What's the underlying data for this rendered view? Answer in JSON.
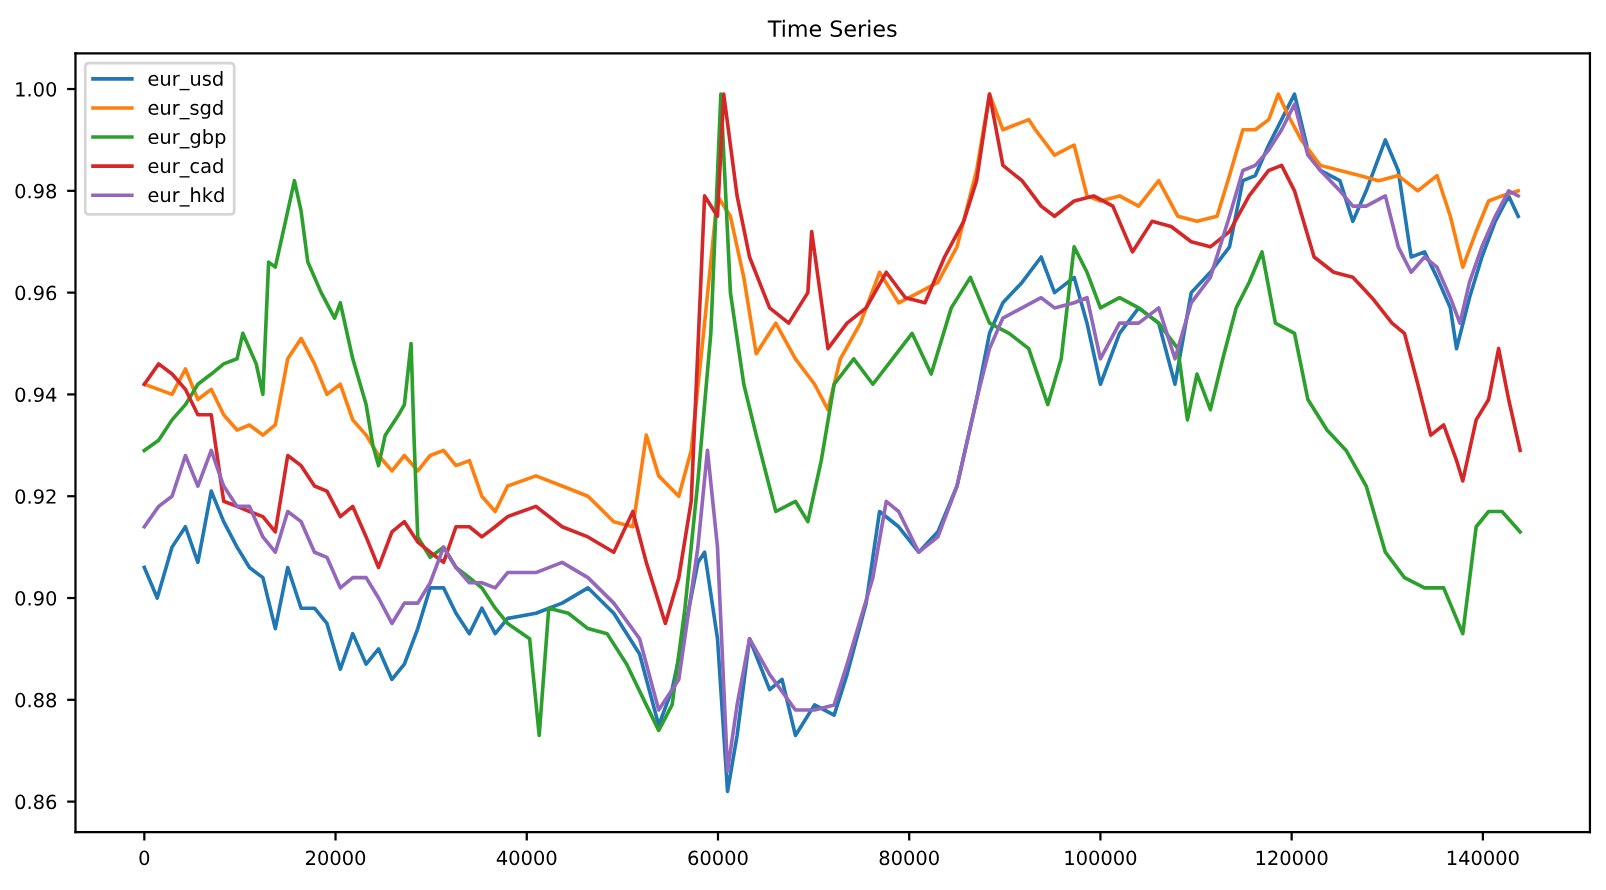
{
  "chart_data": {
    "type": "line",
    "title": "Time Series",
    "xlim": [
      -7200,
      151200
    ],
    "xticks": [
      0,
      20000,
      40000,
      60000,
      80000,
      100000,
      120000,
      140000
    ],
    "ylim": [
      0.854,
      1.007
    ],
    "yticks": [
      0.86,
      0.88,
      {
        "value": 0.9,
        "label": "0.90"
      },
      0.92,
      0.94,
      0.96,
      0.98,
      {
        "value": 1.0,
        "label": "1.00"
      }
    ],
    "grid": false,
    "legend": "top left",
    "series": [
      {
        "name": "eur_usd",
        "color": "#1f77b4",
        "x": [
          0,
          1350,
          2900,
          4300,
          5600,
          7000,
          8300,
          9700,
          11000,
          12400,
          13700,
          15000,
          16400,
          17800,
          19100,
          20500,
          21800,
          23200,
          24500,
          25900,
          27200,
          28600,
          29900,
          31300,
          32600,
          34000,
          35300,
          36700,
          38000,
          40960,
          43700,
          46400,
          49100,
          51800,
          53800,
          55200,
          56550,
          57900,
          58600,
          59950,
          61000,
          62000,
          63300,
          65400,
          66700,
          68100,
          70100,
          72150,
          73500,
          75500,
          76900,
          78900,
          81000,
          83000,
          85000,
          87050,
          88400,
          89800,
          91800,
          93800,
          95200,
          97250,
          98600,
          100000,
          102000,
          104000,
          106100,
          107800,
          109500,
          111500,
          113500,
          114900,
          116200,
          117600,
          118950,
          120300,
          121700,
          123000,
          125050,
          126400,
          127800,
          129800,
          131150,
          132500,
          133900,
          135200,
          136600,
          137250,
          138600,
          139900,
          141300,
          142700,
          143700
        ],
        "values": [
          0.906,
          0.9,
          0.91,
          0.914,
          0.907,
          0.921,
          0.915,
          0.91,
          0.906,
          0.904,
          0.894,
          0.906,
          0.898,
          0.898,
          0.895,
          0.886,
          0.893,
          0.887,
          0.89,
          0.884,
          0.887,
          0.894,
          0.902,
          0.902,
          0.897,
          0.893,
          0.898,
          0.893,
          0.896,
          0.897,
          0.899,
          0.902,
          0.897,
          0.889,
          0.875,
          0.882,
          0.894,
          0.907,
          0.909,
          0.892,
          0.862,
          0.873,
          0.892,
          0.882,
          0.884,
          0.873,
          0.879,
          0.877,
          0.885,
          0.899,
          0.917,
          0.914,
          0.909,
          0.913,
          0.922,
          0.939,
          0.952,
          0.958,
          0.962,
          0.967,
          0.96,
          0.963,
          0.954,
          0.942,
          0.952,
          0.957,
          0.954,
          0.942,
          0.96,
          0.964,
          0.969,
          0.982,
          0.983,
          0.989,
          0.994,
          0.999,
          0.988,
          0.984,
          0.982,
          0.974,
          0.98,
          0.99,
          0.984,
          0.967,
          0.968,
          0.963,
          0.957,
          0.949,
          0.959,
          0.967,
          0.974,
          0.979,
          0.975
        ]
      },
      {
        "name": "eur_sgd",
        "color": "#ff7f0e",
        "x": [
          0,
          2900,
          4300,
          5600,
          7000,
          8300,
          9700,
          11000,
          12400,
          13700,
          15000,
          16400,
          17800,
          19100,
          20500,
          21800,
          23200,
          24500,
          25900,
          27200,
          28600,
          29900,
          31300,
          32600,
          34000,
          35300,
          36700,
          38000,
          40960,
          43700,
          46400,
          49100,
          51100,
          52500,
          53800,
          55900,
          57200,
          58600,
          59950,
          61300,
          62700,
          64000,
          66050,
          68100,
          70100,
          71500,
          72800,
          74900,
          76900,
          78900,
          81000,
          83000,
          85000,
          87050,
          88400,
          89800,
          92500,
          93200,
          95200,
          97250,
          98600,
          100000,
          102000,
          104000,
          106100,
          108100,
          110100,
          112200,
          113500,
          114900,
          116200,
          117600,
          118600,
          119600,
          121000,
          123000,
          125050,
          127100,
          129100,
          131150,
          133200,
          135200,
          136600,
          137900,
          139300,
          140600,
          142000,
          143700
        ],
        "values": [
          0.942,
          0.94,
          0.945,
          0.939,
          0.941,
          0.936,
          0.933,
          0.934,
          0.932,
          0.934,
          0.947,
          0.951,
          0.946,
          0.94,
          0.942,
          0.935,
          0.932,
          0.928,
          0.925,
          0.928,
          0.925,
          0.928,
          0.929,
          0.926,
          0.927,
          0.92,
          0.917,
          0.922,
          0.924,
          0.922,
          0.92,
          0.915,
          0.914,
          0.932,
          0.924,
          0.92,
          0.929,
          0.954,
          0.979,
          0.975,
          0.963,
          0.948,
          0.954,
          0.947,
          0.942,
          0.937,
          0.947,
          0.954,
          0.964,
          0.958,
          0.96,
          0.962,
          0.969,
          0.984,
          0.999,
          0.992,
          0.994,
          0.992,
          0.987,
          0.989,
          0.979,
          0.978,
          0.979,
          0.977,
          0.982,
          0.975,
          0.974,
          0.975,
          0.983,
          0.992,
          0.992,
          0.994,
          0.999,
          0.995,
          0.99,
          0.985,
          0.984,
          0.983,
          0.982,
          0.983,
          0.98,
          0.983,
          0.975,
          0.965,
          0.972,
          0.978,
          0.979,
          0.98
        ]
      },
      {
        "name": "eur_gbp",
        "color": "#2ca02c",
        "x": [
          0,
          1500,
          2900,
          4300,
          5600,
          7000,
          8300,
          9700,
          10300,
          11700,
          12400,
          13000,
          13700,
          15000,
          15700,
          16400,
          17100,
          18500,
          19900,
          20500,
          21800,
          23200,
          23900,
          24500,
          25200,
          26600,
          27200,
          27900,
          28200,
          28600,
          29900,
          31300,
          32600,
          34000,
          35300,
          36700,
          38000,
          40300,
          41300,
          42300,
          44350,
          46400,
          48400,
          50450,
          52500,
          53800,
          55200,
          56550,
          57900,
          59250,
          60300,
          61300,
          62700,
          64000,
          66050,
          68100,
          69400,
          70800,
          72150,
          74200,
          76200,
          78250,
          80300,
          82300,
          84400,
          86400,
          88400,
          90450,
          92500,
          94500,
          95900,
          97250,
          98600,
          100000,
          102000,
          104000,
          106100,
          108100,
          109100,
          110100,
          111500,
          112800,
          114200,
          115550,
          116900,
          118300,
          120300,
          121700,
          123700,
          125700,
          127800,
          129800,
          131800,
          133900,
          135900,
          137900,
          139300,
          140600,
          142000,
          143900
        ],
        "values": [
          0.929,
          0.931,
          0.935,
          0.938,
          0.942,
          0.944,
          0.946,
          0.947,
          0.952,
          0.946,
          0.94,
          0.966,
          0.965,
          0.976,
          0.982,
          0.976,
          0.966,
          0.96,
          0.955,
          0.958,
          0.947,
          0.938,
          0.93,
          0.926,
          0.932,
          0.936,
          0.938,
          0.95,
          0.932,
          0.912,
          0.908,
          0.91,
          0.906,
          0.904,
          0.902,
          0.898,
          0.895,
          0.892,
          0.873,
          0.898,
          0.897,
          0.894,
          0.893,
          0.887,
          0.879,
          0.874,
          0.879,
          0.898,
          0.923,
          0.952,
          0.999,
          0.96,
          0.942,
          0.932,
          0.917,
          0.919,
          0.915,
          0.927,
          0.942,
          0.947,
          0.942,
          0.947,
          0.952,
          0.944,
          0.957,
          0.963,
          0.954,
          0.952,
          0.949,
          0.938,
          0.947,
          0.969,
          0.964,
          0.957,
          0.959,
          0.957,
          0.954,
          0.949,
          0.935,
          0.944,
          0.937,
          0.947,
          0.957,
          0.962,
          0.968,
          0.954,
          0.952,
          0.939,
          0.933,
          0.929,
          0.922,
          0.909,
          0.904,
          0.902,
          0.902,
          0.893,
          0.914,
          0.917,
          0.917,
          0.913
        ]
      },
      {
        "name": "eur_cad",
        "color": "#d62728",
        "x": [
          0,
          1500,
          2900,
          4300,
          5600,
          7000,
          8300,
          9700,
          11000,
          12400,
          13700,
          15000,
          16400,
          17800,
          19100,
          20500,
          21800,
          23200,
          24500,
          25900,
          27200,
          28600,
          29900,
          31300,
          32600,
          34000,
          35300,
          36700,
          38000,
          40960,
          43700,
          46400,
          49100,
          51100,
          52500,
          54500,
          55900,
          57200,
          58600,
          59950,
          60600,
          62000,
          63300,
          65400,
          67400,
          69400,
          69800,
          71500,
          73500,
          75500,
          77600,
          79600,
          81650,
          83700,
          85700,
          87050,
          88400,
          89800,
          91800,
          93800,
          95200,
          97250,
          99300,
          101300,
          103350,
          105400,
          107400,
          109500,
          111500,
          113500,
          115550,
          117600,
          118950,
          120300,
          122350,
          124400,
          126400,
          128400,
          130500,
          131800,
          133200,
          134550,
          135900,
          137250,
          137900,
          139300,
          140600,
          141650,
          142700,
          143900
        ],
        "values": [
          0.942,
          0.946,
          0.944,
          0.941,
          0.936,
          0.936,
          0.919,
          0.918,
          0.917,
          0.916,
          0.913,
          0.928,
          0.926,
          0.922,
          0.921,
          0.916,
          0.918,
          0.912,
          0.906,
          0.913,
          0.915,
          0.911,
          0.909,
          0.907,
          0.914,
          0.914,
          0.912,
          0.914,
          0.916,
          0.918,
          0.914,
          0.912,
          0.909,
          0.917,
          0.907,
          0.895,
          0.904,
          0.919,
          0.979,
          0.975,
          0.999,
          0.979,
          0.967,
          0.957,
          0.954,
          0.96,
          0.972,
          0.949,
          0.954,
          0.957,
          0.964,
          0.959,
          0.958,
          0.967,
          0.974,
          0.982,
          0.999,
          0.985,
          0.982,
          0.977,
          0.975,
          0.978,
          0.979,
          0.977,
          0.968,
          0.974,
          0.973,
          0.97,
          0.969,
          0.972,
          0.979,
          0.984,
          0.985,
          0.98,
          0.967,
          0.964,
          0.963,
          0.959,
          0.954,
          0.952,
          0.942,
          0.932,
          0.934,
          0.927,
          0.923,
          0.935,
          0.939,
          0.949,
          0.939,
          0.929
        ]
      },
      {
        "name": "eur_hkd",
        "color": "#9467bd",
        "x": [
          0,
          1500,
          2900,
          4300,
          5600,
          7000,
          8300,
          9700,
          11000,
          12400,
          13700,
          15000,
          16400,
          17800,
          19100,
          20500,
          21800,
          23200,
          24500,
          25900,
          27200,
          28600,
          29900,
          31300,
          32600,
          34000,
          35300,
          36700,
          38000,
          40960,
          43700,
          46400,
          49100,
          51800,
          53800,
          55900,
          57900,
          58900,
          59950,
          61000,
          62000,
          63300,
          65400,
          68100,
          70100,
          72150,
          73500,
          76200,
          77600,
          78900,
          81000,
          83000,
          85000,
          87050,
          88400,
          89800,
          91800,
          93800,
          95200,
          97250,
          98600,
          100000,
          102000,
          104000,
          106100,
          107800,
          109500,
          111500,
          113500,
          114900,
          116200,
          117600,
          118950,
          120300,
          121700,
          123000,
          125050,
          126400,
          127800,
          129800,
          131150,
          132500,
          133900,
          135200,
          136600,
          137600,
          138600,
          139900,
          141300,
          142700,
          143700
        ],
        "values": [
          0.914,
          0.918,
          0.92,
          0.928,
          0.922,
          0.929,
          0.922,
          0.918,
          0.918,
          0.912,
          0.909,
          0.917,
          0.915,
          0.909,
          0.908,
          0.902,
          0.904,
          0.904,
          0.9,
          0.895,
          0.899,
          0.899,
          0.903,
          0.91,
          0.906,
          0.903,
          0.903,
          0.902,
          0.905,
          0.905,
          0.907,
          0.904,
          0.899,
          0.892,
          0.878,
          0.884,
          0.91,
          0.929,
          0.91,
          0.866,
          0.879,
          0.892,
          0.885,
          0.878,
          0.878,
          0.879,
          0.887,
          0.904,
          0.919,
          0.917,
          0.909,
          0.912,
          0.922,
          0.939,
          0.949,
          0.955,
          0.957,
          0.959,
          0.957,
          0.958,
          0.959,
          0.947,
          0.954,
          0.954,
          0.957,
          0.947,
          0.958,
          0.963,
          0.975,
          0.984,
          0.985,
          0.988,
          0.992,
          0.997,
          0.987,
          0.984,
          0.98,
          0.977,
          0.977,
          0.979,
          0.969,
          0.964,
          0.967,
          0.965,
          0.959,
          0.954,
          0.962,
          0.969,
          0.975,
          0.98,
          0.979
        ]
      }
    ]
  }
}
